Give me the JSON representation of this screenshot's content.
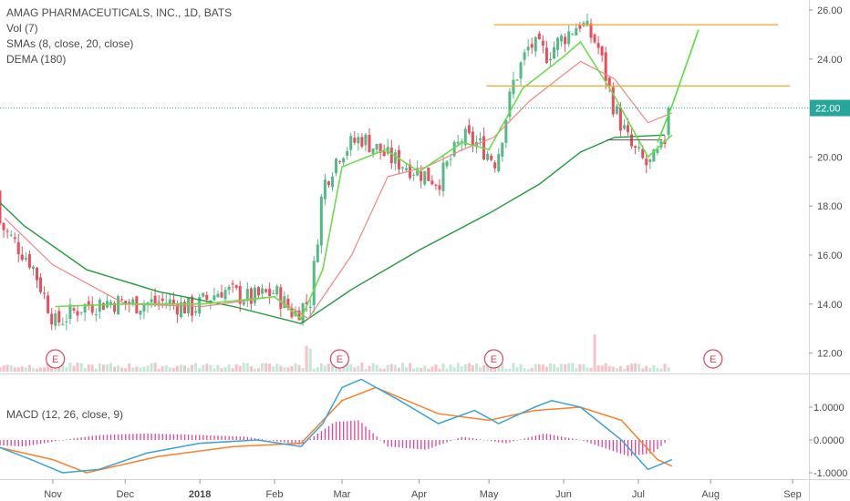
{
  "chart_data": {
    "type": "candlestick",
    "symbol_title": "AMAG PHARMACEUTICALS, INC., 1D, BATS",
    "indicators": [
      "Vol (7)",
      "SMAs (8, close, 20, close)",
      "DEMA (180)"
    ],
    "macd_label": "MACD (12, 26, close, 9)",
    "last_price_label": "22.00",
    "last_price": 22.0,
    "price_axis": {
      "ticks": [
        "26.00",
        "24.00",
        "22.00",
        "20.00",
        "18.00",
        "16.00",
        "14.00",
        "12.00"
      ],
      "ylim": [
        11.1,
        26.6
      ]
    },
    "macd_axis": {
      "ticks": [
        "1.0000",
        "0.0000",
        "-1.0000"
      ],
      "ylim": [
        -1.2,
        1.9
      ]
    },
    "x_ticks": [
      {
        "label": "Nov",
        "date": "2017-11-01"
      },
      {
        "label": "Dec",
        "date": "2017-12-01"
      },
      {
        "label": "2018",
        "date": "2018-01-01"
      },
      {
        "label": "Feb",
        "date": "2018-02-01"
      },
      {
        "label": "Mar",
        "date": "2018-03-01"
      },
      {
        "label": "Apr",
        "date": "2018-04-02"
      },
      {
        "label": "May",
        "date": "2018-05-01"
      },
      {
        "label": "Jun",
        "date": "2018-06-01"
      },
      {
        "label": "Jul",
        "date": "2018-07-02"
      },
      {
        "label": "Aug",
        "date": "2018-08-01"
      },
      {
        "label": "Sep",
        "date": "2018-09-04"
      }
    ],
    "earnings_markers": [
      {
        "label": "E",
        "date": "2017-11-02"
      },
      {
        "label": "E",
        "date": "2018-02-28"
      },
      {
        "label": "E",
        "date": "2018-05-03"
      },
      {
        "label": "E",
        "date": "2018-08-02"
      }
    ],
    "close_series": [
      {
        "date": "2017-10-02",
        "close": 18.6
      },
      {
        "date": "2017-10-12",
        "close": 17.0
      },
      {
        "date": "2017-10-23",
        "close": 15.7
      },
      {
        "date": "2017-11-02",
        "close": 13.2
      },
      {
        "date": "2017-11-13",
        "close": 13.9
      },
      {
        "date": "2017-11-24",
        "close": 14.1
      },
      {
        "date": "2017-12-05",
        "close": 14.0
      },
      {
        "date": "2017-12-18",
        "close": 14.1
      },
      {
        "date": "2017-12-29",
        "close": 13.8
      },
      {
        "date": "2018-01-10",
        "close": 14.6
      },
      {
        "date": "2018-01-22",
        "close": 14.2
      },
      {
        "date": "2018-02-01",
        "close": 14.5
      },
      {
        "date": "2018-02-09",
        "close": 13.6
      },
      {
        "date": "2018-02-16",
        "close": 14.2
      },
      {
        "date": "2018-02-21",
        "close": 18.8
      },
      {
        "date": "2018-02-28",
        "close": 20.2
      },
      {
        "date": "2018-03-09",
        "close": 20.8
      },
      {
        "date": "2018-03-20",
        "close": 20.0
      },
      {
        "date": "2018-03-29",
        "close": 19.6
      },
      {
        "date": "2018-04-10",
        "close": 19.0
      },
      {
        "date": "2018-04-20",
        "close": 20.8
      },
      {
        "date": "2018-04-27",
        "close": 20.5
      },
      {
        "date": "2018-05-04",
        "close": 19.8
      },
      {
        "date": "2018-05-11",
        "close": 23.0
      },
      {
        "date": "2018-05-18",
        "close": 24.6
      },
      {
        "date": "2018-05-25",
        "close": 24.2
      },
      {
        "date": "2018-06-01",
        "close": 24.9
      },
      {
        "date": "2018-06-08",
        "close": 25.5
      },
      {
        "date": "2018-06-15",
        "close": 24.6
      },
      {
        "date": "2018-06-22",
        "close": 22.0
      },
      {
        "date": "2018-06-29",
        "close": 20.4
      },
      {
        "date": "2018-07-06",
        "close": 19.6
      },
      {
        "date": "2018-07-12",
        "close": 20.3
      },
      {
        "date": "2018-07-16",
        "close": 22.0
      }
    ],
    "sma_fast": [
      {
        "date": "2017-11-02",
        "value": 13.9
      },
      {
        "date": "2017-12-01",
        "value": 14.0
      },
      {
        "date": "2018-01-02",
        "value": 14.0
      },
      {
        "date": "2018-02-01",
        "value": 14.3
      },
      {
        "date": "2018-02-12",
        "value": 13.4
      },
      {
        "date": "2018-02-21",
        "value": 15.4
      },
      {
        "date": "2018-03-01",
        "value": 19.6
      },
      {
        "date": "2018-03-19",
        "value": 20.3
      },
      {
        "date": "2018-04-02",
        "value": 19.4
      },
      {
        "date": "2018-04-20",
        "value": 20.6
      },
      {
        "date": "2018-05-01",
        "value": 20.3
      },
      {
        "date": "2018-05-15",
        "value": 22.8
      },
      {
        "date": "2018-06-01",
        "value": 24.1
      },
      {
        "date": "2018-06-08",
        "value": 24.7
      },
      {
        "date": "2018-06-22",
        "value": 22.5
      },
      {
        "date": "2018-07-06",
        "value": 20.0
      },
      {
        "date": "2018-07-16",
        "value": 20.9
      }
    ],
    "sma_slow": [
      {
        "date": "2017-10-12",
        "value": 17.5
      },
      {
        "date": "2017-11-01",
        "value": 15.6
      },
      {
        "date": "2017-12-01",
        "value": 14.0
      },
      {
        "date": "2018-01-02",
        "value": 13.9
      },
      {
        "date": "2018-02-01",
        "value": 14.3
      },
      {
        "date": "2018-02-15",
        "value": 13.4
      },
      {
        "date": "2018-03-05",
        "value": 16.0
      },
      {
        "date": "2018-03-20",
        "value": 19.2
      },
      {
        "date": "2018-04-05",
        "value": 19.6
      },
      {
        "date": "2018-04-20",
        "value": 20.3
      },
      {
        "date": "2018-05-03",
        "value": 20.8
      },
      {
        "date": "2018-05-18",
        "value": 22.3
      },
      {
        "date": "2018-06-08",
        "value": 23.9
      },
      {
        "date": "2018-06-22",
        "value": 23.2
      },
      {
        "date": "2018-07-06",
        "value": 21.4
      },
      {
        "date": "2018-07-16",
        "value": 21.8
      }
    ],
    "dema": [
      {
        "date": "2017-10-02",
        "value": 18.9
      },
      {
        "date": "2017-10-20",
        "value": 17.2
      },
      {
        "date": "2017-11-15",
        "value": 15.4
      },
      {
        "date": "2017-12-15",
        "value": 14.5
      },
      {
        "date": "2018-01-15",
        "value": 13.9
      },
      {
        "date": "2018-02-12",
        "value": 13.2
      },
      {
        "date": "2018-03-05",
        "value": 14.6
      },
      {
        "date": "2018-04-02",
        "value": 16.2
      },
      {
        "date": "2018-05-01",
        "value": 17.7
      },
      {
        "date": "2018-05-22",
        "value": 18.9
      },
      {
        "date": "2018-06-08",
        "value": 20.2
      },
      {
        "date": "2018-06-22",
        "value": 20.8
      },
      {
        "date": "2018-07-13",
        "value": 20.9
      }
    ],
    "annotations": {
      "resistance_top": {
        "price": 25.4,
        "from": "2018-05-03",
        "to": "2018-08-29"
      },
      "resistance_mid": {
        "price": 22.9,
        "from": "2018-04-30",
        "to": "2018-09-03"
      },
      "support_short": {
        "price": 20.7,
        "from": "2018-06-19",
        "to": "2018-07-12"
      },
      "projection": [
        {
          "date": "2018-07-10",
          "value": 20.6
        },
        {
          "date": "2018-07-16",
          "value": 22.1
        },
        {
          "date": "2018-07-27",
          "value": 25.2
        }
      ]
    },
    "macd": {
      "macd_line": [
        {
          "date": "2017-10-02",
          "value": 0.0
        },
        {
          "date": "2017-10-23",
          "value": -0.6
        },
        {
          "date": "2017-11-05",
          "value": -1.0
        },
        {
          "date": "2017-11-20",
          "value": -0.9
        },
        {
          "date": "2017-12-10",
          "value": -0.4
        },
        {
          "date": "2018-01-01",
          "value": -0.1
        },
        {
          "date": "2018-01-25",
          "value": 0.0
        },
        {
          "date": "2018-02-12",
          "value": -0.2
        },
        {
          "date": "2018-02-21",
          "value": 0.5
        },
        {
          "date": "2018-03-01",
          "value": 1.6
        },
        {
          "date": "2018-03-09",
          "value": 1.85
        },
        {
          "date": "2018-03-25",
          "value": 1.2
        },
        {
          "date": "2018-04-10",
          "value": 0.5
        },
        {
          "date": "2018-04-25",
          "value": 0.9
        },
        {
          "date": "2018-05-05",
          "value": 0.5
        },
        {
          "date": "2018-05-20",
          "value": 1.0
        },
        {
          "date": "2018-05-27",
          "value": 1.2
        },
        {
          "date": "2018-06-08",
          "value": 1.0
        },
        {
          "date": "2018-06-25",
          "value": 0.0
        },
        {
          "date": "2018-07-06",
          "value": -0.9
        },
        {
          "date": "2018-07-16",
          "value": -0.6
        }
      ],
      "signal_line": [
        {
          "date": "2017-10-02",
          "value": -0.1
        },
        {
          "date": "2017-11-01",
          "value": -0.6
        },
        {
          "date": "2017-11-15",
          "value": -1.0
        },
        {
          "date": "2017-12-15",
          "value": -0.5
        },
        {
          "date": "2018-01-15",
          "value": -0.2
        },
        {
          "date": "2018-02-12",
          "value": -0.1
        },
        {
          "date": "2018-03-01",
          "value": 1.2
        },
        {
          "date": "2018-03-15",
          "value": 1.6
        },
        {
          "date": "2018-04-10",
          "value": 0.8
        },
        {
          "date": "2018-05-01",
          "value": 0.6
        },
        {
          "date": "2018-05-20",
          "value": 0.9
        },
        {
          "date": "2018-06-08",
          "value": 1.0
        },
        {
          "date": "2018-06-25",
          "value": 0.6
        },
        {
          "date": "2018-07-10",
          "value": -0.6
        },
        {
          "date": "2018-07-16",
          "value": -0.8
        }
      ],
      "histogram": [
        {
          "date": "2017-10-05",
          "value": -0.15
        },
        {
          "date": "2017-10-20",
          "value": -0.2
        },
        {
          "date": "2017-11-05",
          "value": 0.0
        },
        {
          "date": "2017-11-20",
          "value": 0.15
        },
        {
          "date": "2017-12-10",
          "value": 0.2
        },
        {
          "date": "2018-01-01",
          "value": 0.15
        },
        {
          "date": "2018-01-20",
          "value": 0.1
        },
        {
          "date": "2018-02-12",
          "value": -0.15
        },
        {
          "date": "2018-02-26",
          "value": 0.55
        },
        {
          "date": "2018-03-08",
          "value": 0.6
        },
        {
          "date": "2018-03-20",
          "value": -0.2
        },
        {
          "date": "2018-04-05",
          "value": -0.3
        },
        {
          "date": "2018-04-20",
          "value": 0.1
        },
        {
          "date": "2018-05-08",
          "value": -0.1
        },
        {
          "date": "2018-05-24",
          "value": 0.2
        },
        {
          "date": "2018-06-08",
          "value": 0.0
        },
        {
          "date": "2018-06-28",
          "value": -0.5
        },
        {
          "date": "2018-07-08",
          "value": -0.4
        },
        {
          "date": "2018-07-16",
          "value": 0.1
        }
      ]
    },
    "colors": {
      "up": "#53b987",
      "down": "#eb4d5c",
      "sma_fast": "#6cdd4c",
      "sma_slow": "#f08686",
      "dema": "#1f9a3a",
      "projection": "#57e03b",
      "resistance": "#f0a82a",
      "last_price_line": "#26a69a",
      "macd": "#3aa3d8",
      "signal": "#ff7f27",
      "hist": "#e0439a",
      "earnings": "#e0455f",
      "axis_text": "#4a4a4a"
    }
  }
}
